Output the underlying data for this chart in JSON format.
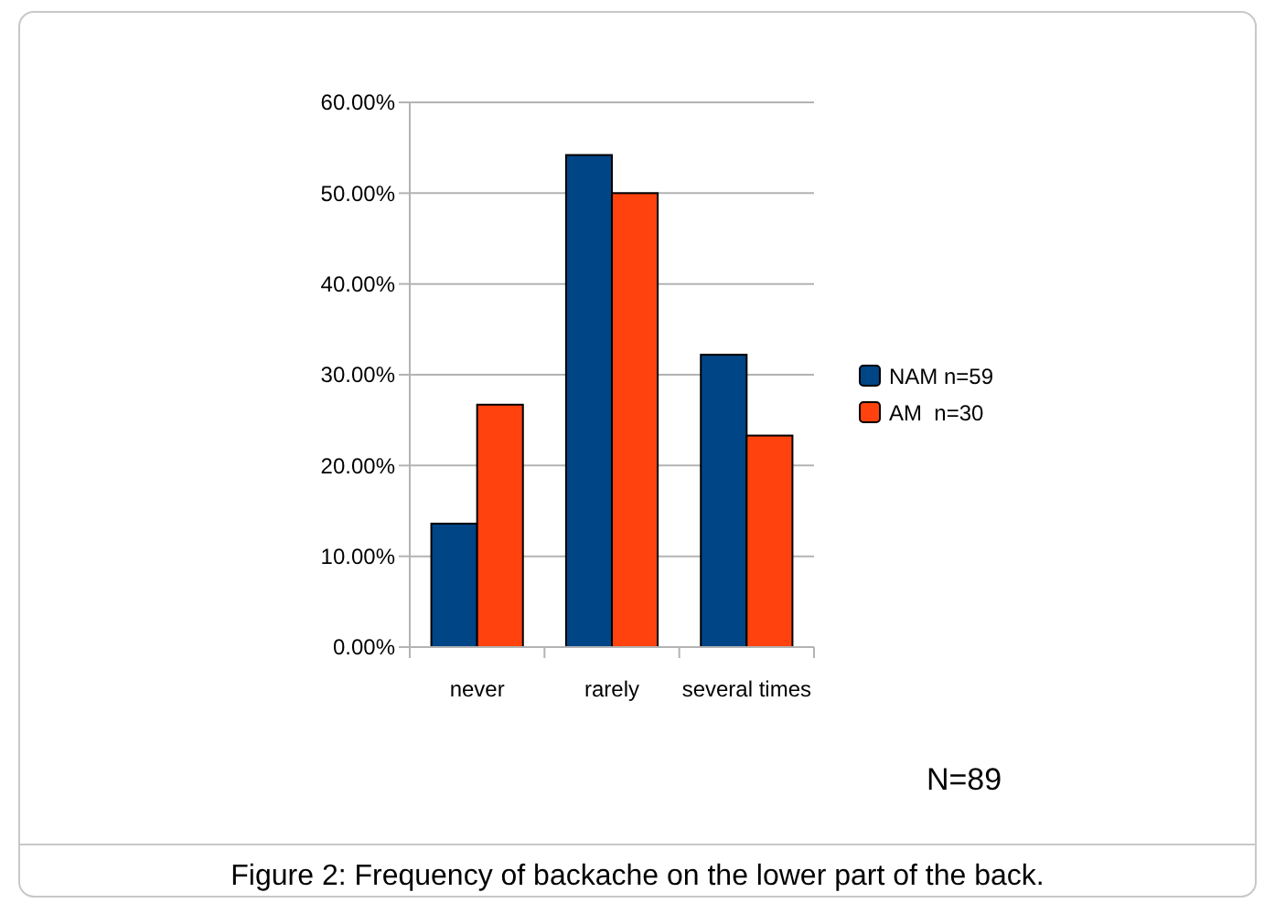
{
  "chart_data": {
    "type": "bar",
    "title": "Figure 2: Frequency of backache on the lower part of the back.",
    "categories": [
      "never",
      "rarely",
      "several times"
    ],
    "series": [
      {
        "name": "NAM n=59",
        "color": "#004586",
        "values": [
          13.6,
          54.2,
          32.2
        ]
      },
      {
        "name": "AM  n=30",
        "color": "#ff420e",
        "values": [
          26.7,
          50,
          23.3
        ]
      }
    ],
    "ylim": [
      0,
      60
    ],
    "yticks": [
      {
        "value": 0,
        "label": "0.00%"
      },
      {
        "value": 10,
        "label": "10.00%"
      },
      {
        "value": 20,
        "label": "20.00%"
      },
      {
        "value": 30,
        "label": "30.00%"
      },
      {
        "value": 40,
        "label": "40.00%"
      },
      {
        "value": 50,
        "label": "50.00%"
      },
      {
        "value": 60,
        "label": "60.00%"
      }
    ],
    "grid": "y",
    "legend": "right",
    "annotations": [
      "N=89"
    ]
  }
}
